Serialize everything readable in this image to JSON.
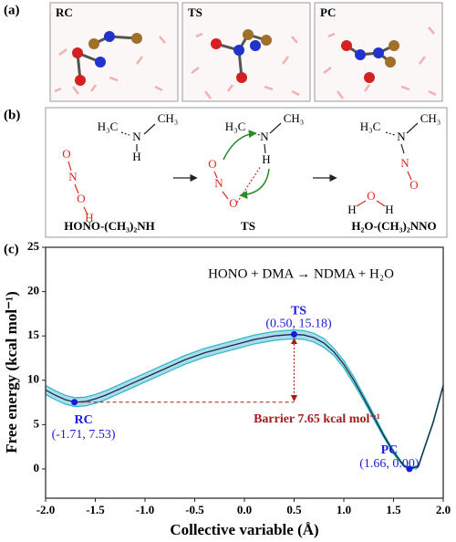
{
  "panel_a": {
    "letter": "(a)",
    "frames": [
      "RC",
      "TS",
      "PC"
    ]
  },
  "panel_b": {
    "letter": "(b)",
    "molecules": [
      {
        "atoms": [
          "H₃C",
          "N",
          "CH₃",
          "H",
          "O",
          "N",
          "O",
          "H"
        ],
        "label": "HONO-(CH₃)₂NH"
      },
      {
        "atoms": [
          "H₃C",
          "N",
          "CH₃",
          "H",
          "O",
          "N",
          "O"
        ],
        "label": "TS"
      },
      {
        "atoms": [
          "H₃C",
          "N",
          "CH₃",
          "N",
          "O",
          "H",
          "O",
          "H"
        ],
        "label": "H₂O-(CH₃)₂NNO"
      }
    ]
  },
  "chart_data": {
    "type": "line",
    "letter": "(c)",
    "title": "HONO + DMA → NDMA + H₂O",
    "x_label": "Collective variable (Å)",
    "y_label": "Free energy (kcal mol⁻¹)",
    "x": [
      -2.0,
      -1.9,
      -1.8,
      -1.7,
      -1.6,
      -1.5,
      -1.4,
      -1.3,
      -1.2,
      -1.1,
      -1.0,
      -0.9,
      -0.8,
      -0.7,
      -0.6,
      -0.5,
      -0.4,
      -0.3,
      -0.2,
      -0.1,
      0.0,
      0.1,
      0.2,
      0.3,
      0.4,
      0.5,
      0.6,
      0.7,
      0.8,
      0.9,
      1.0,
      1.1,
      1.2,
      1.3,
      1.4,
      1.5,
      1.6,
      1.66,
      1.75,
      1.8,
      1.9,
      2.0
    ],
    "series": [
      {
        "color": "#1f2d3d",
        "band_color": "#a8dcee",
        "band_edge": "#2bb5c8",
        "values": [
          8.9,
          8.3,
          7.8,
          7.53,
          7.6,
          7.9,
          8.3,
          8.8,
          9.3,
          9.8,
          10.3,
          10.8,
          11.3,
          11.8,
          12.3,
          12.7,
          13.1,
          13.4,
          13.7,
          14.0,
          14.3,
          14.6,
          14.8,
          15.0,
          15.1,
          15.18,
          15.1,
          14.8,
          14.2,
          13.2,
          11.8,
          10.0,
          8.0,
          5.9,
          3.8,
          1.9,
          0.4,
          0.0,
          0.3,
          2.0,
          5.3,
          9.4
        ],
        "errors": [
          0.5,
          0.5,
          0.5,
          0.5,
          0.5,
          0.5,
          0.5,
          0.5,
          0.5,
          0.5,
          0.5,
          0.5,
          0.5,
          0.5,
          0.5,
          0.5,
          0.5,
          0.5,
          0.5,
          0.5,
          0.5,
          0.5,
          0.5,
          0.5,
          0.5,
          0.5,
          0.5,
          0.5,
          0.5,
          0.4,
          0.4,
          0.4,
          0.3,
          0.3,
          0.2,
          0.2,
          0.1,
          0.1,
          0.1,
          0.1,
          0.1,
          0.1
        ]
      }
    ],
    "points": [
      {
        "label": "RC",
        "coords": "(-1.71, 7.53)",
        "x": -1.71,
        "y": 7.53
      },
      {
        "label": "TS",
        "coords": "(0.50, 15.18)",
        "x": 0.5,
        "y": 15.18
      },
      {
        "label": "PC",
        "coords": "(1.66, 0.00)",
        "x": 1.66,
        "y": 0.0
      }
    ],
    "point_color": "#1a1adb",
    "barrier": "Barrier 7.65 kcal mol⁻¹",
    "barrier_color": "#a51c1c",
    "xlim": [
      -2.0,
      2.0
    ],
    "xticks": [
      {
        "value": -2.0,
        "label": "-2.0"
      },
      {
        "value": -1.5,
        "label": "-1.5"
      },
      {
        "value": -1.0,
        "label": "-1.0"
      },
      {
        "value": -0.5,
        "label": "-0.5"
      },
      {
        "value": 0.0,
        "label": "0.0"
      },
      {
        "value": 0.5,
        "label": "0.5"
      },
      {
        "value": 1.0,
        "label": "1.0"
      },
      {
        "value": 1.5,
        "label": "1.5"
      },
      {
        "value": 2.0,
        "label": "2.0"
      }
    ],
    "ylim": [
      -3.3,
      25
    ],
    "yticks": [
      0,
      5,
      10,
      15,
      20,
      25
    ],
    "grid": false
  }
}
